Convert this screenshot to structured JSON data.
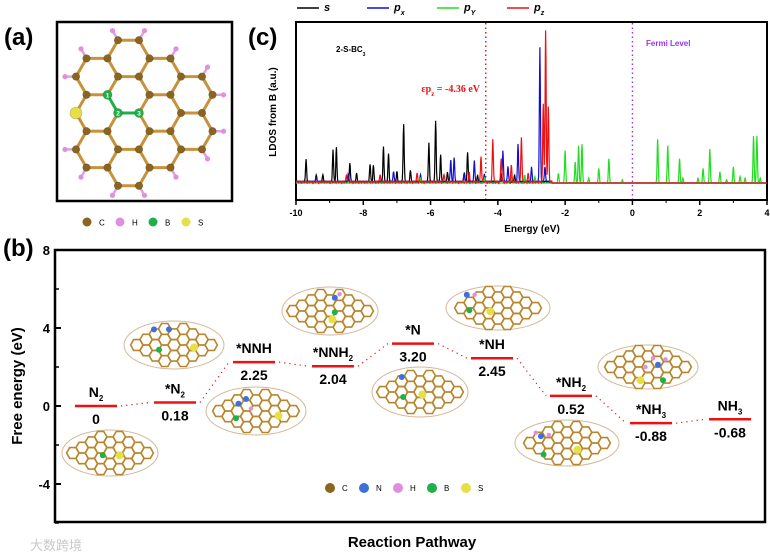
{
  "panel_labels": {
    "a": "(a)",
    "b": "(b)",
    "c": "(c)"
  },
  "panel_a": {
    "legend": [
      {
        "symbol": "C",
        "color": "#8a6520"
      },
      {
        "symbol": "H",
        "color": "#e08fe0"
      },
      {
        "symbol": "B",
        "color": "#1fb04a"
      },
      {
        "symbol": "S",
        "color": "#e6df48"
      }
    ],
    "boron_site_numbers": [
      "1",
      "2",
      "3"
    ],
    "bond_color": "#c8923c"
  },
  "panel_b_legend": [
    {
      "symbol": "C",
      "color": "#8a6520"
    },
    {
      "symbol": "N",
      "color": "#3f6fd8"
    },
    {
      "symbol": "H",
      "color": "#e08fe0"
    },
    {
      "symbol": "B",
      "color": "#1fb04a"
    },
    {
      "symbol": "S",
      "color": "#e6df48"
    }
  ],
  "watermark": "大数跨境",
  "chart_data": [
    {
      "type": "line",
      "panel": "c",
      "title": "",
      "annotation_system": {
        "text": "2-S-BC",
        "sub": "3"
      },
      "annotation_fermi": "Fermi Level",
      "annotation_center": {
        "prefix": "εp",
        "sub": "z",
        "suffix": " = -4.36 eV",
        "value": -4.36
      },
      "fermi_energy": 0,
      "xlabel": "Energy (eV)",
      "ylabel": "LDOS from B (a.u.)",
      "xlim": [
        -10,
        4
      ],
      "ylim": [
        -1,
        10
      ],
      "xticks": [
        "-10",
        "-8",
        "-6",
        "-4",
        "-2",
        "0",
        "2",
        "4"
      ],
      "legend_position": "top",
      "series": [
        {
          "name": "s",
          "sub": "",
          "color": "#000000",
          "peaks": [
            [
              -9.7,
              1.4
            ],
            [
              -9.4,
              0.4
            ],
            [
              -9.2,
              0.4
            ],
            [
              -8.9,
              2.0
            ],
            [
              -8.8,
              2.1
            ],
            [
              -8.4,
              1.2
            ],
            [
              -8.2,
              0.5
            ],
            [
              -7.8,
              1.1
            ],
            [
              -7.7,
              1.0
            ],
            [
              -7.4,
              2.2
            ],
            [
              -7.25,
              1.7
            ],
            [
              -7.0,
              0.6
            ],
            [
              -6.8,
              3.6
            ],
            [
              -6.6,
              0.7
            ],
            [
              -6.05,
              2.4
            ],
            [
              -5.85,
              3.8
            ],
            [
              -5.7,
              1.7
            ],
            [
              -5.5,
              0.6
            ],
            [
              -5.0,
              0.6
            ],
            [
              -4.9,
              1.8
            ],
            [
              -4.6,
              0.4
            ],
            [
              -3.9,
              0.5
            ],
            [
              -3.5,
              0.4
            ]
          ]
        },
        {
          "name": "p",
          "sub": "x",
          "color": "#1010d0",
          "peaks": [
            [
              -9.4,
              0.3
            ],
            [
              -8.45,
              0.5
            ],
            [
              -7.1,
              0.7
            ],
            [
              -6.3,
              0.4
            ],
            [
              -5.4,
              1.4
            ],
            [
              -5.3,
              1.5
            ],
            [
              -5.0,
              0.5
            ],
            [
              -4.7,
              1.3
            ],
            [
              -4.4,
              0.5
            ],
            [
              -3.85,
              1.9
            ],
            [
              -3.7,
              1.0
            ],
            [
              -3.4,
              2.3
            ],
            [
              -3.0,
              0.9
            ],
            [
              -2.75,
              8.3
            ],
            [
              -2.6,
              1.0
            ]
          ]
        },
        {
          "name": "p",
          "sub": "Y",
          "color": "#22dd22",
          "peaks": [
            [
              -6.3,
              0.3
            ],
            [
              -4.4,
              0.3
            ],
            [
              -3.6,
              0.5
            ],
            [
              -3.2,
              0.5
            ],
            [
              -2.9,
              0.4
            ],
            [
              -2.2,
              0.6
            ],
            [
              -2.0,
              2.0
            ],
            [
              -1.7,
              1.3
            ],
            [
              -1.6,
              2.3
            ],
            [
              -1.5,
              2.4
            ],
            [
              -1.3,
              0.3
            ],
            [
              -1.0,
              0.9
            ],
            [
              -0.7,
              1.5
            ],
            [
              -0.3,
              0.2
            ],
            [
              0.75,
              2.7
            ],
            [
              1.05,
              2.3
            ],
            [
              1.4,
              1.5
            ],
            [
              1.5,
              0.3
            ],
            [
              1.95,
              0.3
            ],
            [
              2.1,
              0.9
            ],
            [
              2.3,
              2.1
            ],
            [
              2.6,
              0.7
            ],
            [
              2.8,
              0.2
            ],
            [
              3.0,
              1.0
            ],
            [
              3.2,
              0.4
            ],
            [
              3.35,
              0.3
            ],
            [
              3.6,
              2.9
            ],
            [
              3.7,
              2.9
            ],
            [
              3.8,
              0.3
            ]
          ]
        },
        {
          "name": "p",
          "sub": "z",
          "color": "#ee1111",
          "peaks": [
            [
              -8.5,
              0.4
            ],
            [
              -7.5,
              0.4
            ],
            [
              -6.4,
              0.5
            ],
            [
              -5.6,
              0.5
            ],
            [
              -4.85,
              0.6
            ],
            [
              -4.5,
              1.6
            ],
            [
              -4.15,
              2.7
            ],
            [
              -3.9,
              1.5
            ],
            [
              -3.6,
              1.0
            ],
            [
              -3.3,
              2.8
            ],
            [
              -3.1,
              0.5
            ],
            [
              -2.65,
              4.8
            ],
            [
              -2.58,
              9.3
            ],
            [
              -2.5,
              4.6
            ]
          ]
        }
      ]
    },
    {
      "type": "line",
      "panel": "b",
      "subtype": "energy-level-diagram",
      "xlabel": "Reaction Pathway",
      "ylabel": "Free energy (eV)",
      "ylim": [
        -6,
        8
      ],
      "yticks": [
        "8",
        "4",
        "0",
        "-4"
      ],
      "ytick_values": [
        8,
        4,
        0,
        -4
      ],
      "level_color": "#ee1111",
      "steps": [
        {
          "name": "N",
          "sub": "2",
          "value": 0,
          "display": "0"
        },
        {
          "name": "*N",
          "sub": "2",
          "value": 0.18,
          "display": "0.18"
        },
        {
          "name": "*NNH",
          "sub": "",
          "value": 2.25,
          "display": "2.25"
        },
        {
          "name": "*NNH",
          "sub": "2",
          "value": 2.04,
          "display": "2.04"
        },
        {
          "name": "*N",
          "sub": "",
          "value": 3.2,
          "display": "3.20"
        },
        {
          "name": "*NH",
          "sub": "",
          "value": 2.45,
          "display": "2.45"
        },
        {
          "name": "*NH",
          "sub": "2",
          "value": 0.52,
          "display": "0.52"
        },
        {
          "name": "*NH",
          "sub": "3",
          "value": -0.88,
          "display": "-0.88"
        },
        {
          "name": "NH",
          "sub": "3",
          "value": -0.68,
          "display": "-0.68"
        }
      ]
    }
  ]
}
